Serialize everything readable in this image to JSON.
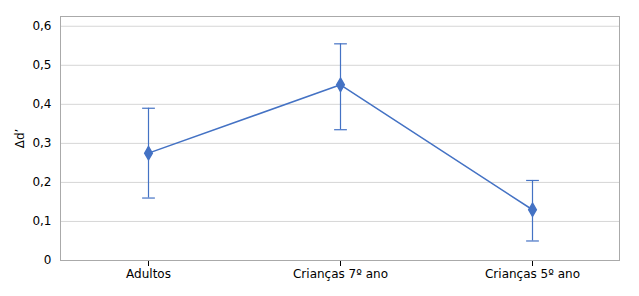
{
  "chart_data": {
    "type": "line",
    "categories": [
      "Adultos",
      "Crianças 7º ano",
      "Crianças 5º ano"
    ],
    "values": [
      0.275,
      0.45,
      0.13
    ],
    "yerr_lower": [
      0.115,
      0.115,
      0.08
    ],
    "yerr_upper": [
      0.115,
      0.105,
      0.075
    ],
    "color": "#4472C4",
    "marker": "diamond",
    "ylabel": "Δd’",
    "ylim": [
      0,
      0.625
    ],
    "yticks": [
      0,
      {
        "value": 0.1,
        "label": "0,1"
      },
      {
        "value": 0.2,
        "label": "0,2"
      },
      {
        "value": 0.3,
        "label": "0,3"
      },
      {
        "value": 0.4,
        "label": "0,4"
      },
      {
        "value": 0.5,
        "label": "0,5"
      },
      {
        "value": 0.6,
        "label": "0,6"
      }
    ],
    "grid": true
  }
}
